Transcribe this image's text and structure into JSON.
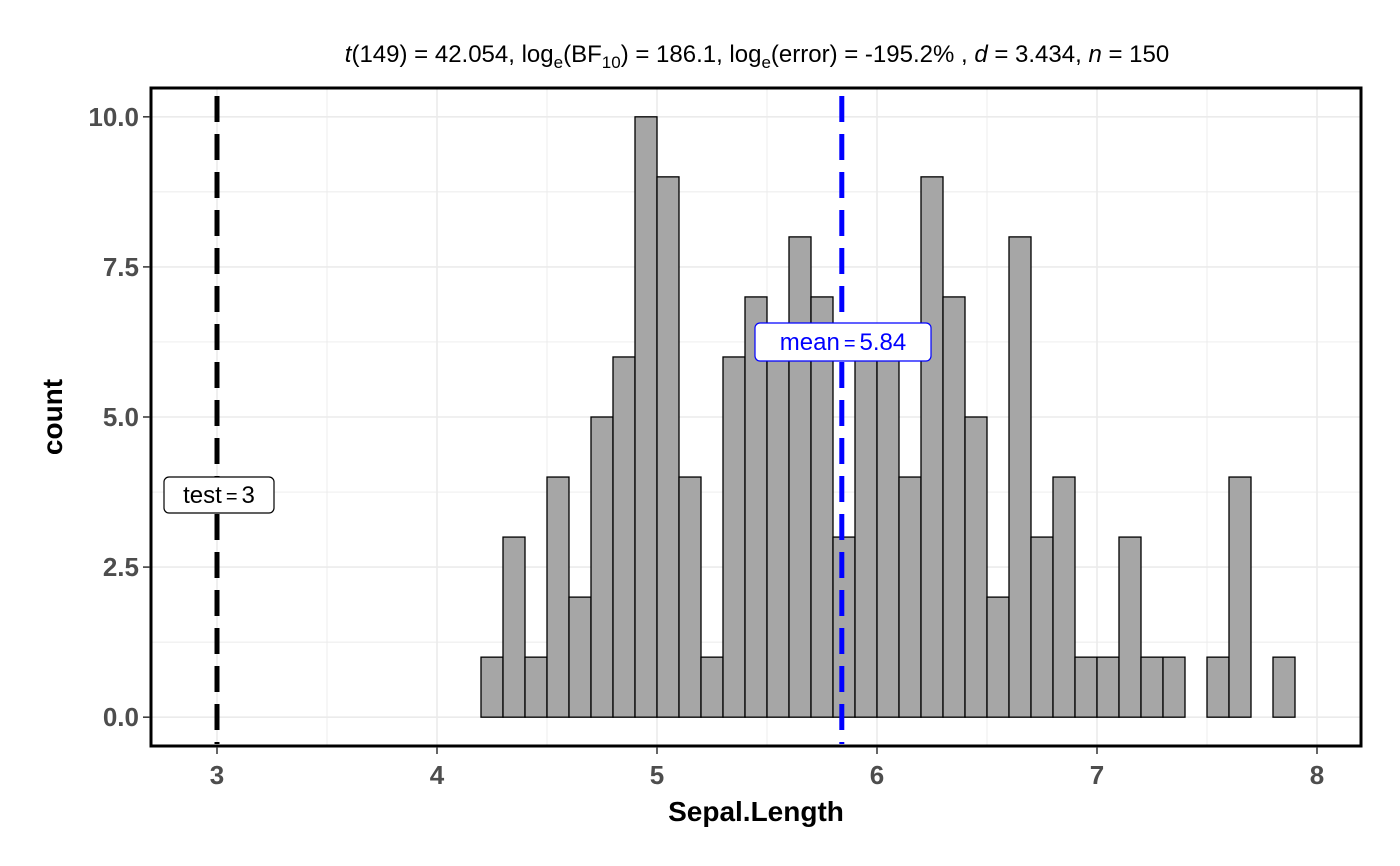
{
  "chart_data": {
    "type": "bar",
    "subtitle_parts": {
      "t_sym": "t",
      "t_rest": "(149) = 42.054, log",
      "log_sub1": "e",
      "bf_open": "(BF",
      "bf_sub": "10",
      "bf_close": ") = 186.1, log",
      "log_sub2": "e",
      "err": "(error) = -195.2% , ",
      "d_sym": "d",
      "d_rest": " = 3.434, ",
      "n_sym": "n",
      "n_rest": " = 150"
    },
    "xlabel": "Sepal.Length",
    "ylabel": "count",
    "xlim": [
      2.7,
      8.2
    ],
    "ylim": [
      -0.48,
      10.48
    ],
    "x_ticks": [
      3,
      4,
      5,
      6,
      7,
      8
    ],
    "y_ticks": [
      0,
      2.5,
      5,
      7.5,
      10
    ],
    "x_tick_labels": [
      "3",
      "4",
      "5",
      "6",
      "7",
      "8"
    ],
    "y_tick_labels": [
      "0.0",
      "2.5",
      "5.0",
      "7.5",
      "10.0"
    ],
    "bin_width": 0.1,
    "x": [
      2.95,
      3.05,
      3.15,
      3.25,
      3.35,
      3.45,
      3.55,
      3.65,
      3.75,
      3.85,
      3.95,
      4.05,
      4.15,
      4.25,
      4.35,
      4.45,
      4.55,
      4.65,
      4.75,
      4.85,
      4.95,
      5.05,
      5.15,
      5.25,
      5.35,
      5.45,
      5.55,
      5.65,
      5.75,
      5.85,
      5.95,
      6.05,
      6.15,
      6.25,
      6.35,
      6.45,
      6.55,
      6.65,
      6.75,
      6.85,
      6.95,
      7.05,
      7.15,
      7.25,
      7.35,
      7.45,
      7.55,
      7.65,
      7.75,
      7.85,
      7.95
    ],
    "values": [
      0,
      0,
      0,
      0,
      0,
      0,
      0,
      0,
      0,
      0,
      0,
      0,
      0,
      1,
      3,
      1,
      4,
      2,
      5,
      6,
      10,
      9,
      4,
      1,
      6,
      7,
      6,
      8,
      7,
      3,
      6,
      6,
      4,
      9,
      7,
      5,
      2,
      8,
      3,
      4,
      1,
      1,
      3,
      1,
      1,
      0,
      1,
      4,
      0,
      1,
      0
    ],
    "bar_fill": "#a6a6a6",
    "bar_stroke": "#000000",
    "test_line": {
      "x": 3,
      "color": "#000000",
      "label_word": "test",
      "label_eq": "=",
      "label_value": "3"
    },
    "mean_line": {
      "x": 5.84,
      "color": "#0000ff",
      "label_word": "mean",
      "label_eq": "=",
      "label_value": "5.84"
    },
    "grid": true
  }
}
